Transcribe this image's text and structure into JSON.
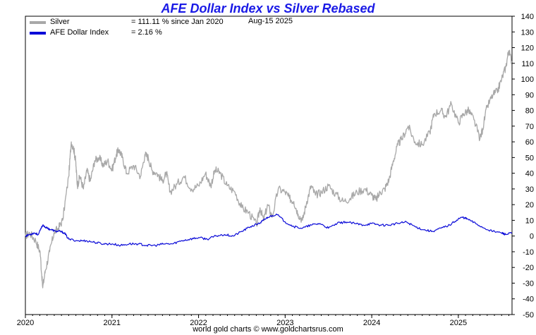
{
  "chart_data": {
    "type": "line",
    "title": "AFE Dollar Index vs Silver Rebased",
    "date_label": "Aug-15  2025",
    "footer": "world gold charts © www.goldchartsrus.com",
    "xlabel": "",
    "ylabel": "",
    "x_range": [
      2020.0,
      2025.62
    ],
    "ylim": [
      -50,
      140
    ],
    "y_ticks": [
      -50,
      -40,
      -30,
      -20,
      -10,
      0,
      10,
      20,
      30,
      40,
      50,
      60,
      70,
      80,
      90,
      100,
      110,
      120,
      130,
      140
    ],
    "y_tick_labels": [
      "-50",
      "-40",
      "-30",
      "-20",
      "-10",
      "0",
      "10",
      "20",
      "30",
      "40",
      "50",
      "60",
      "70",
      "80",
      "90",
      "100",
      "110",
      "120",
      "130",
      "140"
    ],
    "x_ticks": [
      2020,
      2021,
      2022,
      2023,
      2024,
      2025
    ],
    "x_tick_labels": [
      "2020",
      "2021",
      "2022",
      "2023",
      "2024",
      "2025"
    ],
    "grid": false,
    "legend_position": "top-left",
    "series": [
      {
        "name": "Silver",
        "label": "= 111.11 % since Jan 2020",
        "color": "#a8a8a8",
        "x": [
          2020.0,
          2020.05,
          2020.12,
          2020.17,
          2020.2,
          2020.23,
          2020.28,
          2020.33,
          2020.38,
          2020.43,
          2020.5,
          2020.53,
          2020.56,
          2020.58,
          2020.6,
          2020.63,
          2020.67,
          2020.71,
          2020.75,
          2020.8,
          2020.85,
          2020.9,
          2020.95,
          2021.0,
          2021.05,
          2021.08,
          2021.12,
          2021.17,
          2021.25,
          2021.33,
          2021.38,
          2021.42,
          2021.46,
          2021.52,
          2021.58,
          2021.63,
          2021.67,
          2021.75,
          2021.83,
          2021.92,
          2022.0,
          2022.08,
          2022.14,
          2022.19,
          2022.25,
          2022.33,
          2022.42,
          2022.5,
          2022.58,
          2022.67,
          2022.71,
          2022.75,
          2022.8,
          2022.85,
          2022.92,
          2023.0,
          2023.05,
          2023.1,
          2023.15,
          2023.2,
          2023.25,
          2023.3,
          2023.35,
          2023.42,
          2023.5,
          2023.58,
          2023.67,
          2023.75,
          2023.83,
          2023.92,
          2024.0,
          2024.05,
          2024.1,
          2024.15,
          2024.2,
          2024.25,
          2024.3,
          2024.35,
          2024.42,
          2024.5,
          2024.58,
          2024.67,
          2024.72,
          2024.8,
          2024.85,
          2024.92,
          2025.0,
          2025.06,
          2025.12,
          2025.18,
          2025.25,
          2025.28,
          2025.33,
          2025.4,
          2025.45,
          2025.5,
          2025.55,
          2025.58,
          2025.62
        ],
        "values": [
          0,
          2,
          -3,
          -10,
          -33,
          -22,
          -10,
          2,
          5,
          10,
          38,
          60,
          55,
          48,
          32,
          38,
          30,
          42,
          35,
          48,
          50,
          45,
          48,
          42,
          52,
          55,
          50,
          40,
          45,
          38,
          52,
          50,
          42,
          40,
          35,
          40,
          28,
          33,
          38,
          30,
          32,
          40,
          32,
          42,
          40,
          32,
          28,
          18,
          15,
          7,
          18,
          10,
          20,
          12,
          30,
          28,
          24,
          22,
          14,
          10,
          22,
          32,
          26,
          28,
          32,
          27,
          22,
          24,
          28,
          30,
          26,
          23,
          28,
          30,
          36,
          48,
          58,
          62,
          70,
          60,
          58,
          66,
          78,
          80,
          76,
          84,
          72,
          78,
          80,
          74,
          62,
          68,
          82,
          90,
          92,
          100,
          108,
          118,
          111
        ]
      },
      {
        "name": "AFE Dollar Index",
        "label": "= 2.16 %",
        "color": "#0a0ad8",
        "x": [
          2020.0,
          2020.05,
          2020.1,
          2020.15,
          2020.2,
          2020.25,
          2020.3,
          2020.35,
          2020.4,
          2020.45,
          2020.5,
          2020.6,
          2020.7,
          2020.8,
          2020.9,
          2021.0,
          2021.1,
          2021.2,
          2021.3,
          2021.4,
          2021.5,
          2021.6,
          2021.7,
          2021.8,
          2021.9,
          2022.0,
          2022.1,
          2022.2,
          2022.3,
          2022.4,
          2022.5,
          2022.6,
          2022.7,
          2022.75,
          2022.8,
          2022.9,
          2023.0,
          2023.1,
          2023.2,
          2023.3,
          2023.4,
          2023.5,
          2023.6,
          2023.7,
          2023.8,
          2023.9,
          2024.0,
          2024.1,
          2024.2,
          2024.3,
          2024.4,
          2024.5,
          2024.6,
          2024.7,
          2024.8,
          2024.9,
          2025.0,
          2025.05,
          2025.1,
          2025.2,
          2025.3,
          2025.4,
          2025.5,
          2025.55,
          2025.62
        ],
        "values": [
          0,
          1,
          2,
          1,
          7,
          5,
          4,
          3,
          3,
          2,
          -2,
          -3,
          -3,
          -4,
          -5,
          -5,
          -6,
          -5,
          -5,
          -6,
          -6,
          -5,
          -5,
          -3,
          -2,
          -1,
          -2,
          0,
          1,
          0,
          3,
          6,
          8,
          10,
          12,
          14,
          9,
          6,
          5,
          7,
          8,
          5,
          8,
          9,
          8,
          7,
          8,
          7,
          7,
          8,
          9,
          6,
          4,
          3,
          5,
          7,
          11,
          12,
          11,
          8,
          5,
          3,
          2,
          1,
          2
        ]
      }
    ]
  }
}
